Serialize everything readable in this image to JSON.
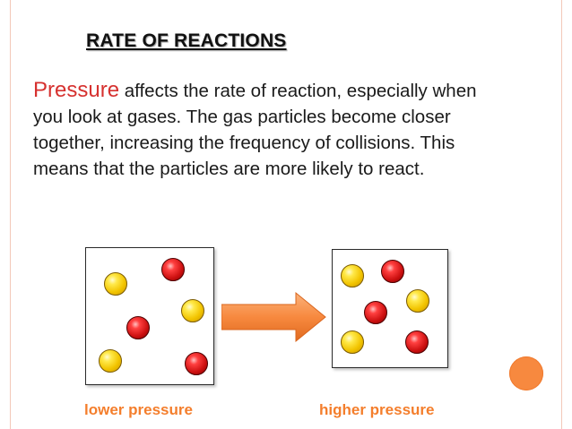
{
  "slide": {
    "title": "RATE OF REACTIONS",
    "keyword": "Pressure",
    "body": "affects the rate of reaction, especially when you look at gases. The gas particles become closer together, increasing the frequency of collisions. This means that the particles are more likely to react."
  },
  "diagram": {
    "left_caption": "lower pressure",
    "right_caption": "higher pressure",
    "colors": {
      "yellow_particle": "#f2c400",
      "red_particle": "#cc1010",
      "arrow": "#f7893f",
      "caption": "#f47e2c",
      "keyword": "#d6312f"
    }
  }
}
